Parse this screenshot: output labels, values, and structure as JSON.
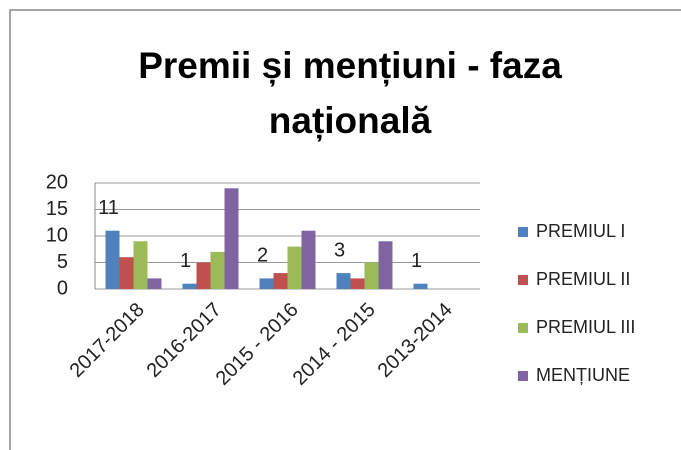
{
  "chart_data": {
    "type": "bar",
    "title": "Premii și mențiuni - faza națională",
    "categories": [
      "2017-2018",
      "2016-2017",
      "2015 - 2016",
      "2014 - 2015",
      "2013-2014"
    ],
    "series": [
      {
        "name": "PREMIUL I",
        "color": "#4f81bd",
        "values": [
          11,
          1,
          2,
          3,
          1
        ]
      },
      {
        "name": "PREMIUL II",
        "color": "#c0504d",
        "values": [
          6,
          5,
          3,
          2,
          0
        ]
      },
      {
        "name": "PREMIUL III",
        "color": "#9bbb59",
        "values": [
          9,
          7,
          8,
          5,
          0
        ]
      },
      {
        "name": "MENȚIUNE",
        "color": "#8064a2",
        "values": [
          2,
          19,
          11,
          9,
          0
        ]
      }
    ],
    "data_labels_series": 0,
    "ylim": [
      0,
      20
    ],
    "yticks": [
      0,
      5,
      10,
      15,
      20
    ],
    "grid": true,
    "legend": "right"
  }
}
